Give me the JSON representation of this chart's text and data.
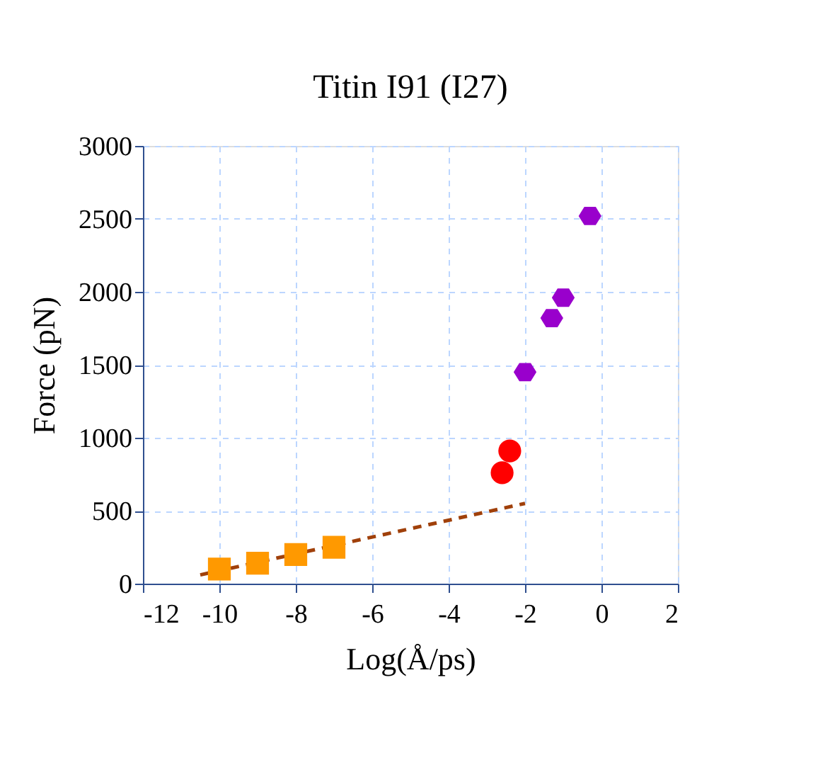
{
  "chart_data": {
    "type": "scatter",
    "title": "Titin I91 (I27)",
    "xlabel": "Log(Å/ps)",
    "ylabel": "Force (pN)",
    "xlim": [
      -12,
      2
    ],
    "ylim": [
      0,
      3000
    ],
    "xticks": [
      -12,
      -10,
      -8,
      -6,
      -4,
      -2,
      0,
      2
    ],
    "yticks": [
      0,
      500,
      1000,
      1500,
      2000,
      2500,
      3000
    ],
    "grid": true,
    "series": [
      {
        "type": "line",
        "line_style": "dashed",
        "marker": "none",
        "color": "#a0400a",
        "x": [
          -10.5,
          -2
        ],
        "values": [
          60,
          550
        ]
      },
      {
        "marker": "square",
        "color": "#ff9900",
        "x": [
          -10,
          -9,
          -8,
          -7
        ],
        "values": [
          100,
          140,
          200,
          250
        ]
      },
      {
        "marker": "circle",
        "color": "#ff0000",
        "x": [
          -2.4,
          -2.6
        ],
        "values": [
          910,
          760
        ]
      },
      {
        "color": "#9900cc",
        "x": [
          -2,
          -1.3,
          -1,
          -0.3
        ],
        "values": [
          1450,
          1820,
          1960,
          2520
        ]
      }
    ]
  }
}
